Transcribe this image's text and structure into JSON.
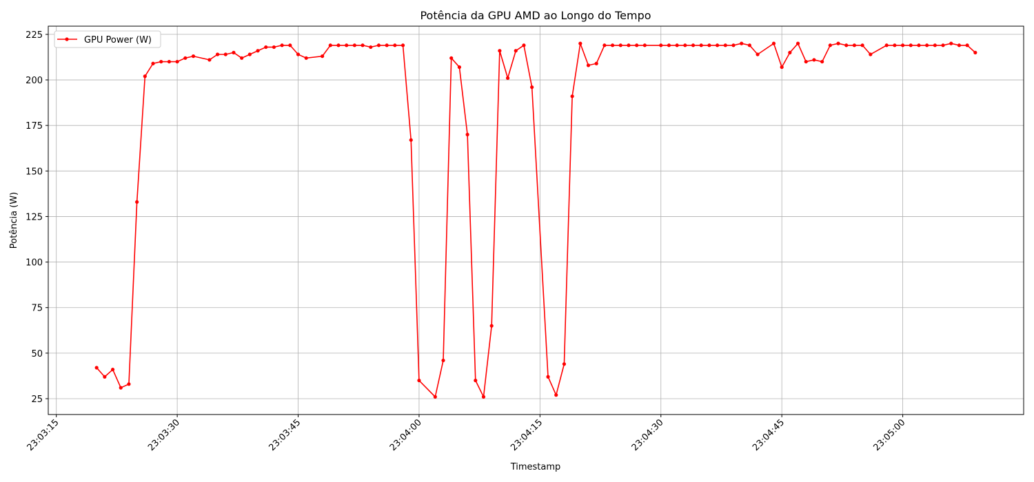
{
  "chart_data": {
    "type": "line",
    "title": "Potência da GPU AMD ao Longo do Tempo",
    "x_label": "Timestamp",
    "y_label": "Potência (W)",
    "x": [
      "23:03:20",
      "23:03:21",
      "23:03:22",
      "23:03:23",
      "23:03:24",
      "23:03:25",
      "23:03:26",
      "23:03:27",
      "23:03:28",
      "23:03:29",
      "23:03:30",
      "23:03:31",
      "23:03:32",
      "23:03:34",
      "23:03:35",
      "23:03:36",
      "23:03:37",
      "23:03:38",
      "23:03:39",
      "23:03:40",
      "23:03:41",
      "23:03:42",
      "23:03:43",
      "23:03:44",
      "23:03:45",
      "23:03:46",
      "23:03:48",
      "23:03:49",
      "23:03:50",
      "23:03:51",
      "23:03:52",
      "23:03:53",
      "23:03:54",
      "23:03:55",
      "23:03:56",
      "23:03:57",
      "23:03:58",
      "23:03:59",
      "23:04:00",
      "23:04:02",
      "23:04:03",
      "23:04:04",
      "23:04:05",
      "23:04:06",
      "23:04:07",
      "23:04:08",
      "23:04:09",
      "23:04:10",
      "23:04:11",
      "23:04:12",
      "23:04:13",
      "23:04:14",
      "23:04:16",
      "23:04:17",
      "23:04:18",
      "23:04:19",
      "23:04:20",
      "23:04:21",
      "23:04:22",
      "23:04:23",
      "23:04:24",
      "23:04:25",
      "23:04:26",
      "23:04:27",
      "23:04:28",
      "23:04:30",
      "23:04:31",
      "23:04:32",
      "23:04:33",
      "23:04:34",
      "23:04:35",
      "23:04:36",
      "23:04:37",
      "23:04:38",
      "23:04:39",
      "23:04:40",
      "23:04:41",
      "23:04:42",
      "23:04:44",
      "23:04:45",
      "23:04:46",
      "23:04:47",
      "23:04:48",
      "23:04:49",
      "23:04:50",
      "23:04:51",
      "23:04:52",
      "23:04:53",
      "23:04:54",
      "23:04:55",
      "23:04:56",
      "23:04:58",
      "23:04:59",
      "23:05:00",
      "23:05:01",
      "23:05:02",
      "23:05:03",
      "23:05:04",
      "23:05:05",
      "23:05:06",
      "23:05:07",
      "23:05:08",
      "23:05:09"
    ],
    "series": [
      {
        "name": "GPU Power (W)",
        "color": "#ff0000",
        "values": [
          42,
          37,
          41,
          31,
          33,
          133,
          202,
          209,
          210,
          210,
          210,
          212,
          213,
          211,
          214,
          214,
          215,
          212,
          214,
          216,
          218,
          218,
          219,
          219,
          214,
          212,
          213,
          219,
          219,
          219,
          219,
          219,
          218,
          219,
          219,
          219,
          219,
          167,
          35,
          26,
          46,
          212,
          207,
          170,
          35,
          26,
          65,
          216,
          201,
          216,
          219,
          196,
          37,
          27,
          44,
          191,
          220,
          208,
          209,
          219,
          219,
          219,
          219,
          219,
          219,
          219,
          219,
          219,
          219,
          219,
          219,
          219,
          219,
          219,
          219,
          220,
          219,
          214,
          220,
          207,
          215,
          220,
          210,
          211,
          210,
          219,
          220,
          219,
          219,
          219,
          214,
          219,
          219,
          219,
          219,
          219,
          219,
          219,
          219,
          220,
          219,
          219,
          215
        ]
      }
    ],
    "xlim": [
      "23:03:14",
      "23:05:15"
    ],
    "xticks": [
      "23:03:15",
      "23:03:30",
      "23:03:45",
      "23:04:00",
      "23:04:15",
      "23:04:30",
      "23:04:45",
      "23:05:00"
    ],
    "ylim": [
      16.3,
      229.5
    ],
    "yticks": [
      25,
      50,
      75,
      100,
      125,
      150,
      175,
      200,
      225
    ],
    "grid": true,
    "legend": "upper left"
  }
}
